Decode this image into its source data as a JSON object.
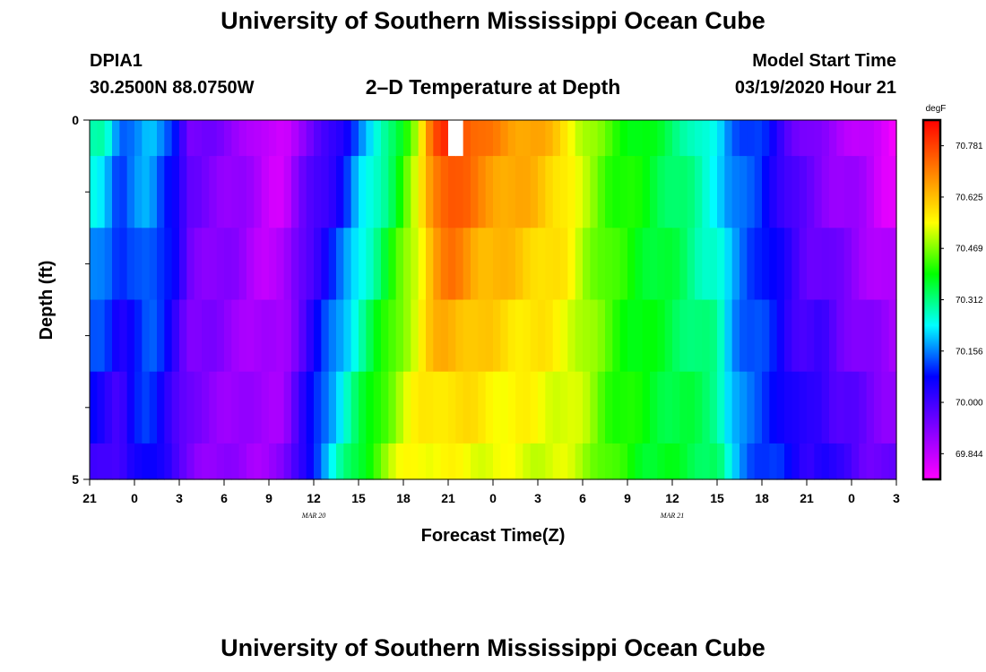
{
  "page": {
    "title": "University of Southern Mississippi Ocean Cube",
    "station": "DPIA1",
    "location": "30.2500N 88.0750W",
    "subtitle": "2–D Temperature at Depth",
    "model_start_label": "Model Start Time",
    "model_start_value": "03/19/2020 Hour 21",
    "footer_title": "University of Southern Mississippi Ocean Cube"
  },
  "chart_data": {
    "type": "heatmap",
    "title": "2–D Temperature at Depth",
    "xlabel": "Forecast Time(Z)",
    "ylabel": "Depth (ft)",
    "xlim": [
      0,
      54
    ],
    "ylim": [
      0,
      5
    ],
    "x_ticks": [
      {
        "value": 0,
        "label": "21"
      },
      {
        "value": 3,
        "label": "0"
      },
      {
        "value": 6,
        "label": "3"
      },
      {
        "value": 9,
        "label": "6"
      },
      {
        "value": 12,
        "label": "9"
      },
      {
        "value": 15,
        "label": "12"
      },
      {
        "value": 18,
        "label": "15"
      },
      {
        "value": 21,
        "label": "18"
      },
      {
        "value": 24,
        "label": "21"
      },
      {
        "value": 27,
        "label": "0"
      },
      {
        "value": 30,
        "label": "3"
      },
      {
        "value": 33,
        "label": "6"
      },
      {
        "value": 36,
        "label": "9"
      },
      {
        "value": 39,
        "label": "12"
      },
      {
        "value": 42,
        "label": "15"
      },
      {
        "value": 45,
        "label": "18"
      },
      {
        "value": 48,
        "label": "21"
      },
      {
        "value": 51,
        "label": "0"
      },
      {
        "value": 54,
        "label": "3"
      }
    ],
    "date_labels": [
      {
        "value": 15,
        "label": "MAR 20"
      },
      {
        "value": 39,
        "label": "MAR 21"
      }
    ],
    "y_tick_labels": [
      {
        "value": 0,
        "label": "0"
      },
      {
        "value": 5,
        "label": "5"
      }
    ],
    "y_minor_ticks": [
      1,
      2,
      3,
      4
    ],
    "colorbar": {
      "units": "degF",
      "min": 69.766,
      "max": 70.859,
      "labels": [
        "70.781",
        "70.625",
        "70.469",
        "70.312",
        "70.156",
        "70.000",
        "69.844"
      ],
      "colors": [
        "#ff00ff",
        "#8000ff",
        "#0000ff",
        "#00ffff",
        "#00ff00",
        "#ffff00",
        "#ff8000",
        "#ff0000"
      ]
    },
    "missing_cell": {
      "x": 24.5,
      "depth": 0.25
    },
    "depth_levels": [
      0.25,
      0.75,
      1.5,
      2.5,
      3.5,
      4.5
    ],
    "profile_surface": [
      [
        0,
        70.28
      ],
      [
        1,
        70.27
      ],
      [
        2,
        70.14
      ],
      [
        3,
        70.17
      ],
      [
        4,
        70.2
      ],
      [
        5,
        70.13
      ],
      [
        6,
        70.08
      ],
      [
        6.5,
        69.95
      ],
      [
        8,
        69.93
      ],
      [
        10,
        69.9
      ],
      [
        11,
        69.86
      ],
      [
        12,
        69.82
      ],
      [
        13,
        69.82
      ],
      [
        14,
        69.9
      ],
      [
        15,
        69.95
      ],
      [
        16,
        69.99
      ],
      [
        17,
        70.05
      ],
      [
        18,
        70.16
      ],
      [
        19,
        70.22
      ],
      [
        20,
        70.3
      ],
      [
        21,
        70.4
      ],
      [
        22,
        70.52
      ],
      [
        23,
        70.74
      ],
      [
        24,
        70.82
      ],
      [
        25,
        70.78
      ],
      [
        26,
        70.72
      ],
      [
        28,
        70.68
      ],
      [
        30,
        70.65
      ],
      [
        31,
        70.62
      ],
      [
        32,
        70.58
      ],
      [
        33,
        70.5
      ],
      [
        35,
        70.42
      ],
      [
        37,
        70.38
      ],
      [
        39,
        70.33
      ],
      [
        40,
        70.3
      ],
      [
        41,
        70.25
      ],
      [
        42,
        70.22
      ],
      [
        43,
        70.15
      ],
      [
        44,
        70.12
      ],
      [
        45,
        70.1
      ],
      [
        46,
        70.03
      ],
      [
        47,
        69.97
      ],
      [
        48,
        69.93
      ],
      [
        49,
        69.9
      ],
      [
        50,
        69.88
      ],
      [
        51,
        69.86
      ],
      [
        52,
        69.84
      ],
      [
        53,
        69.8
      ],
      [
        54,
        69.78
      ]
    ],
    "profile_bottom": [
      [
        0,
        70.04
      ],
      [
        1,
        70.02
      ],
      [
        2,
        69.98
      ],
      [
        3,
        70.06
      ],
      [
        4,
        70.1
      ],
      [
        5,
        70.05
      ],
      [
        6,
        69.96
      ],
      [
        7,
        69.92
      ],
      [
        9,
        69.9
      ],
      [
        11,
        69.88
      ],
      [
        13,
        69.9
      ],
      [
        14,
        70.0
      ],
      [
        15,
        70.1
      ],
      [
        16,
        70.2
      ],
      [
        17,
        70.28
      ],
      [
        18,
        70.35
      ],
      [
        19,
        70.42
      ],
      [
        20,
        70.48
      ],
      [
        21,
        70.53
      ],
      [
        22,
        70.56
      ],
      [
        24,
        70.56
      ],
      [
        26,
        70.55
      ],
      [
        28,
        70.54
      ],
      [
        30,
        70.53
      ],
      [
        32,
        70.52
      ],
      [
        33,
        70.5
      ],
      [
        34,
        70.46
      ],
      [
        35,
        70.42
      ],
      [
        37,
        70.38
      ],
      [
        39,
        70.36
      ],
      [
        40,
        70.35
      ],
      [
        42,
        70.33
      ],
      [
        43,
        70.2
      ],
      [
        44,
        70.14
      ],
      [
        45,
        70.12
      ],
      [
        46,
        70.1
      ],
      [
        47,
        70.05
      ],
      [
        48,
        70.02
      ],
      [
        49,
        70.05
      ],
      [
        50,
        70.0
      ],
      [
        51,
        69.98
      ],
      [
        52,
        69.95
      ],
      [
        53,
        69.94
      ],
      [
        54,
        69.93
      ]
    ]
  }
}
